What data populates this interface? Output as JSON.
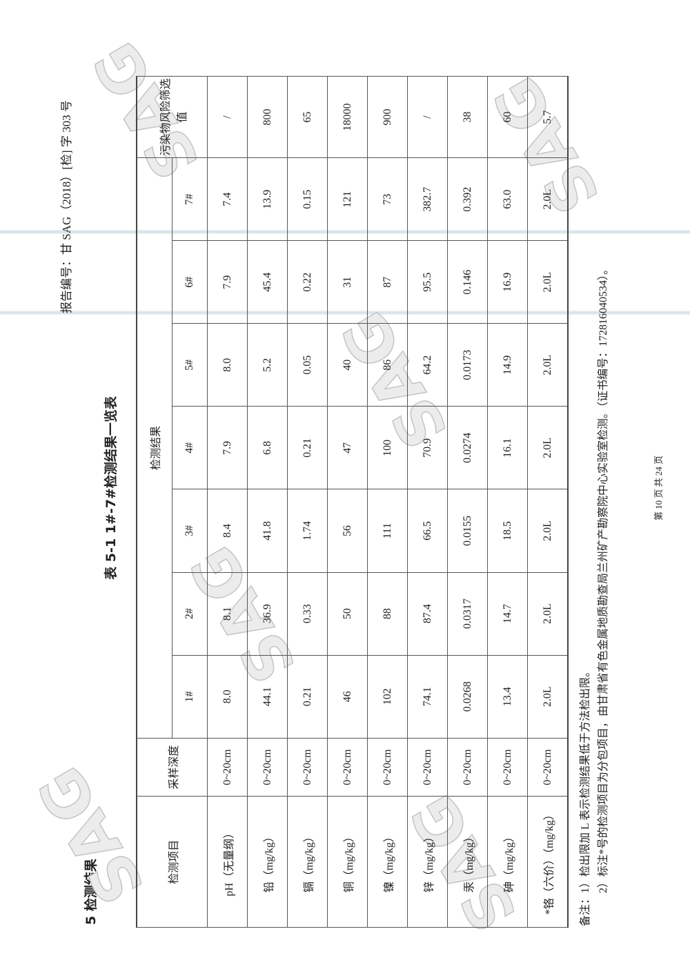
{
  "header": {
    "report_number": "报告编号：甘 SAG（2018）[检] 字 303 号"
  },
  "section_title": "5 检测结果",
  "table_title": "表 5-1  1#-7#检测结果一览表",
  "table": {
    "headers": {
      "item": "检测项目",
      "depth": "采样深度",
      "results_group": "检测结果",
      "sites": [
        "1#",
        "2#",
        "3#",
        "4#",
        "5#",
        "6#",
        "7#"
      ],
      "limit": "污染物风险筛选值"
    },
    "rows": [
      {
        "item": "pH（无量纲）",
        "depth": "0~20cm",
        "values": [
          "8.0",
          "8.1",
          "8.4",
          "7.9",
          "8.0",
          "7.9",
          "7.4"
        ],
        "limit": "/"
      },
      {
        "item": "铅（mg/kg）",
        "depth": "0~20cm",
        "values": [
          "44.1",
          "36.9",
          "41.8",
          "6.8",
          "5.2",
          "45.4",
          "13.9"
        ],
        "limit": "800"
      },
      {
        "item": "镉（mg/kg）",
        "depth": "0~20cm",
        "values": [
          "0.21",
          "0.33",
          "1.74",
          "0.21",
          "0.05",
          "0.22",
          "0.15"
        ],
        "limit": "65"
      },
      {
        "item": "铜（mg/kg）",
        "depth": "0~20cm",
        "values": [
          "46",
          "50",
          "56",
          "47",
          "40",
          "31",
          "121"
        ],
        "limit": "18000"
      },
      {
        "item": "镍（mg/kg）",
        "depth": "0~20cm",
        "values": [
          "102",
          "88",
          "111",
          "100",
          "86",
          "87",
          "73"
        ],
        "limit": "900"
      },
      {
        "item": "锌（mg/kg）",
        "depth": "0~20cm",
        "values": [
          "74.1",
          "87.4",
          "66.5",
          "70.9",
          "64.2",
          "95.5",
          "382.7"
        ],
        "limit": "/"
      },
      {
        "item": "汞（mg/kg）",
        "depth": "0~20cm",
        "values": [
          "0.0268",
          "0.0317",
          "0.0155",
          "0.0274",
          "0.0173",
          "0.146",
          "0.392"
        ],
        "limit": "38"
      },
      {
        "item": "砷（mg/kg）",
        "depth": "0~20cm",
        "values": [
          "13.4",
          "14.7",
          "18.5",
          "16.1",
          "14.9",
          "16.9",
          "63.0"
        ],
        "limit": "60"
      },
      {
        "item": "*铬（六价）（mg/kg）",
        "depth": "0~20cm",
        "values": [
          "2.0L",
          "2.0L",
          "2.0L",
          "2.0L",
          "2.0L",
          "2.0L",
          "2.0L"
        ],
        "limit": "5.7"
      }
    ]
  },
  "notes": [
    "备注：1）检出限加 L 表示检测结果低于方法检出限。",
    "　　　2）标注*号的检测项目为分包项目，由甘肃省有色金属地质勘查局兰州矿产勘察院中心实验室检测。（证书编号：172816040534）。"
  ],
  "footer": "第 10 页 共 24 页",
  "watermark": "SAG"
}
